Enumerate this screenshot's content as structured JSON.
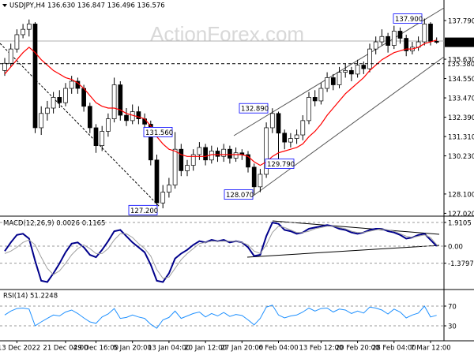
{
  "chart_data": [
    {
      "type": "candlestick",
      "title": "USDJPY,H4 136.630 136.847 136.496 136.576",
      "watermark": "ActionForex.com",
      "ylim": [
        126.95,
        138.85
      ],
      "yticks": [
        {
          "value": 137.79,
          "label": "137.790"
        },
        {
          "value": 135.63,
          "label": "135.630"
        },
        {
          "value": 134.55,
          "label": "134.550"
        },
        {
          "value": 133.47,
          "label": "133.470"
        },
        {
          "value": 132.39,
          "label": "132.390"
        },
        {
          "value": 131.31,
          "label": "131.310"
        },
        {
          "value": 130.23,
          "label": "130.230"
        },
        {
          "value": 128.1,
          "label": "128.100"
        },
        {
          "value": 127.02,
          "label": "127.020"
        }
      ],
      "up_color": "#ffffff",
      "down_color": "#000000",
      "candles": [
        [
          135.0,
          135.7,
          134.7,
          135.4
        ],
        [
          135.4,
          136.5,
          135.2,
          136.2
        ],
        [
          136.2,
          137.3,
          136.0,
          137.0
        ],
        [
          137.0,
          137.6,
          136.8,
          137.3
        ],
        [
          137.3,
          137.85,
          136.9,
          137.6
        ],
        [
          137.6,
          137.7,
          131.5,
          131.8
        ],
        [
          131.8,
          133.0,
          131.4,
          132.6
        ],
        [
          132.6,
          133.3,
          132.2,
          132.9
        ],
        [
          132.9,
          133.8,
          132.6,
          133.5
        ],
        [
          133.5,
          133.9,
          132.9,
          133.2
        ],
        [
          133.2,
          134.3,
          133.0,
          134.0
        ],
        [
          134.0,
          134.7,
          133.7,
          134.4
        ],
        [
          134.4,
          134.6,
          133.7,
          134.0
        ],
        [
          134.0,
          134.2,
          132.7,
          133.0
        ],
        [
          133.0,
          133.2,
          131.5,
          131.8
        ],
        [
          131.8,
          132.0,
          130.4,
          130.8
        ],
        [
          130.8,
          131.9,
          130.5,
          131.6
        ],
        [
          131.6,
          132.6,
          131.3,
          132.3
        ],
        [
          132.3,
          134.6,
          132.1,
          134.2
        ],
        [
          134.2,
          134.4,
          132.2,
          132.5
        ],
        [
          132.5,
          132.9,
          131.9,
          132.2
        ],
        [
          132.2,
          133.1,
          132.0,
          132.7
        ],
        [
          132.7,
          133.0,
          132.0,
          132.3
        ],
        [
          132.3,
          132.6,
          131.7,
          132.0
        ],
        [
          132.0,
          132.2,
          129.7,
          130.0
        ],
        [
          130.0,
          130.3,
          127.2,
          127.6
        ],
        [
          127.6,
          128.6,
          127.3,
          128.2
        ],
        [
          128.2,
          129.0,
          127.9,
          128.6
        ],
        [
          128.6,
          131.56,
          128.4,
          130.6
        ],
        [
          130.6,
          130.9,
          129.1,
          129.4
        ],
        [
          129.4,
          130.0,
          129.1,
          129.7
        ],
        [
          129.7,
          130.6,
          129.4,
          130.3
        ],
        [
          130.3,
          131.0,
          130.0,
          130.7
        ],
        [
          130.7,
          130.9,
          129.7,
          130.0
        ],
        [
          130.0,
          130.8,
          129.8,
          130.5
        ],
        [
          130.5,
          130.7,
          129.9,
          130.2
        ],
        [
          130.2,
          130.9,
          129.9,
          130.6
        ],
        [
          130.6,
          130.8,
          129.8,
          130.1
        ],
        [
          130.1,
          130.7,
          129.9,
          130.4
        ],
        [
          130.4,
          130.6,
          130.0,
          130.3
        ],
        [
          130.3,
          130.5,
          129.3,
          129.6
        ],
        [
          129.6,
          129.8,
          128.07,
          128.5
        ],
        [
          128.5,
          129.5,
          128.2,
          129.2
        ],
        [
          129.2,
          132.1,
          129.0,
          131.8
        ],
        [
          131.8,
          132.89,
          131.5,
          132.6
        ],
        [
          132.6,
          132.7,
          129.79,
          131.5
        ],
        [
          131.5,
          131.7,
          130.6,
          131.0
        ],
        [
          131.0,
          131.5,
          130.7,
          131.2
        ],
        [
          131.2,
          131.7,
          130.9,
          131.4
        ],
        [
          131.4,
          132.5,
          131.1,
          132.2
        ],
        [
          132.2,
          133.8,
          132.0,
          133.5
        ],
        [
          133.5,
          133.9,
          133.0,
          133.3
        ],
        [
          133.3,
          134.3,
          133.1,
          134.0
        ],
        [
          134.0,
          134.9,
          133.8,
          134.6
        ],
        [
          134.6,
          134.8,
          133.9,
          134.2
        ],
        [
          134.2,
          135.2,
          134.0,
          134.9
        ],
        [
          134.9,
          135.4,
          134.6,
          135.0
        ],
        [
          135.0,
          135.2,
          134.4,
          134.8
        ],
        [
          134.8,
          135.6,
          134.6,
          135.3
        ],
        [
          135.3,
          135.5,
          134.8,
          135.1
        ],
        [
          135.1,
          136.5,
          134.9,
          136.2
        ],
        [
          136.2,
          136.9,
          135.9,
          136.6
        ],
        [
          136.6,
          137.3,
          136.4,
          136.9
        ],
        [
          136.9,
          137.1,
          136.0,
          136.4
        ],
        [
          136.4,
          137.5,
          136.2,
          137.2
        ],
        [
          137.2,
          137.4,
          136.5,
          136.8
        ],
        [
          136.8,
          137.0,
          135.8,
          136.1
        ],
        [
          136.1,
          136.6,
          135.9,
          136.3
        ],
        [
          136.3,
          136.9,
          136.1,
          136.6
        ],
        [
          136.6,
          137.9,
          136.4,
          137.6
        ],
        [
          137.6,
          137.7,
          136.4,
          136.63
        ],
        [
          136.63,
          136.847,
          136.496,
          136.576
        ]
      ],
      "series": [
        {
          "color": "#ff0000",
          "values": [
            134.8,
            135.2,
            135.6,
            136.0,
            136.3,
            136.0,
            135.6,
            135.3,
            135.0,
            134.8,
            134.6,
            134.5,
            134.3,
            134.0,
            133.6,
            133.2,
            133.0,
            132.9,
            132.9,
            132.8,
            132.6,
            132.5,
            132.4,
            132.3,
            131.9,
            131.3,
            130.9,
            130.6,
            130.5,
            130.3,
            130.2,
            130.2,
            130.2,
            130.2,
            130.3,
            130.3,
            130.3,
            130.3,
            130.3,
            130.3,
            130.2,
            129.9,
            129.7,
            129.9,
            130.2,
            130.4,
            130.5,
            130.6,
            130.7,
            130.9,
            131.3,
            131.6,
            132.0,
            132.5,
            132.9,
            133.3,
            133.7,
            134.0,
            134.3,
            134.6,
            135.0,
            135.3,
            135.6,
            135.8,
            136.0,
            136.1,
            136.2,
            136.2,
            136.3,
            136.5,
            136.6,
            136.7
          ]
        }
      ],
      "hline": {
        "value": 135.38,
        "label": "135.380"
      },
      "annotations": [
        {
          "value": 137.9,
          "label": "137.900"
        },
        {
          "value": 132.89,
          "label": "132.890"
        },
        {
          "value": 131.56,
          "label": "131.560"
        },
        {
          "value": 129.79,
          "label": "129.790"
        },
        {
          "value": 128.07,
          "label": "128.070"
        },
        {
          "value": 127.2,
          "label": "127.200"
        }
      ]
    },
    {
      "type": "line",
      "title": "MACD(12,26,9) 0.0026 0.1165",
      "ylim": [
        -3.44,
        2.29
      ],
      "yticks": [
        1.9105,
        {
          "value": 0,
          "label": "0.00"
        },
        -1.3797
      ],
      "series": [
        {
          "color": "#00008b",
          "width": 2,
          "values": [
            -0.4,
            0.3,
            0.9,
            1.0,
            0.6,
            -1.2,
            -2.8,
            -2.9,
            -2.2,
            -1.4,
            -0.5,
            0.2,
            0.3,
            -0.1,
            -0.7,
            -0.9,
            -0.3,
            0.4,
            1.2,
            1.3,
            0.8,
            0.3,
            -0.1,
            -0.5,
            -1.5,
            -2.8,
            -2.9,
            -2.2,
            -1.0,
            -0.6,
            -0.3,
            0.1,
            0.4,
            0.3,
            0.5,
            0.4,
            0.5,
            0.3,
            0.4,
            0.3,
            -0.1,
            -0.8,
            -0.7,
            0.8,
            1.9,
            1.8,
            1.3,
            1.2,
            1.0,
            1.1,
            1.4,
            1.5,
            1.6,
            1.7,
            1.6,
            1.4,
            1.3,
            1.1,
            1.0,
            1.1,
            1.3,
            1.4,
            1.4,
            1.2,
            1.1,
            0.9,
            0.6,
            0.7,
            0.9,
            1.0,
            0.5,
            0.0026
          ]
        },
        {
          "color": "#a0a0a0",
          "width": 1,
          "values": [
            -0.6,
            -0.4,
            -0.1,
            0.3,
            0.5,
            0.1,
            -0.9,
            -1.8,
            -2.3,
            -2.0,
            -1.4,
            -0.7,
            -0.2,
            0.1,
            -0.2,
            -0.6,
            -0.6,
            -0.2,
            0.5,
            1.0,
            1.0,
            0.7,
            0.2,
            -0.2,
            -0.8,
            -1.9,
            -2.6,
            -2.5,
            -1.8,
            -1.1,
            -0.6,
            -0.2,
            0.2,
            0.3,
            0.4,
            0.4,
            0.4,
            0.4,
            0.4,
            0.3,
            0.1,
            -0.4,
            -0.6,
            0.1,
            1.1,
            1.6,
            1.5,
            1.3,
            1.1,
            1.1,
            1.2,
            1.4,
            1.5,
            1.6,
            1.6,
            1.5,
            1.4,
            1.2,
            1.1,
            1.1,
            1.2,
            1.3,
            1.4,
            1.3,
            1.2,
            1.0,
            0.8,
            0.7,
            0.8,
            0.9,
            0.7,
            0.1165
          ]
        }
      ]
    },
    {
      "type": "line",
      "title": "RSI(14) 51.2248",
      "ylim": [
        1.2,
        100.4
      ],
      "yticks": [
        70,
        30
      ],
      "series": [
        {
          "color": "#1e90ff",
          "width": 1,
          "values": [
            52,
            60,
            65,
            66,
            64,
            30,
            38,
            45,
            52,
            50,
            58,
            62,
            55,
            46,
            38,
            35,
            48,
            54,
            65,
            45,
            47,
            52,
            48,
            45,
            33,
            25,
            42,
            47,
            60,
            45,
            50,
            55,
            58,
            48,
            55,
            50,
            57,
            49,
            53,
            51,
            42,
            32,
            45,
            68,
            72,
            52,
            46,
            50,
            52,
            58,
            66,
            60,
            65,
            66,
            58,
            64,
            62,
            55,
            60,
            56,
            68,
            66,
            62,
            54,
            64,
            58,
            46,
            52,
            56,
            70,
            48,
            51.2248
          ]
        }
      ],
      "xticks": [
        {
          "value": 2,
          "label": "13 Dec 2022"
        },
        {
          "value": 10,
          "label": "21 Dec 04:00"
        },
        {
          "value": 15,
          "label": "29 Dec 16:00"
        },
        {
          "value": 21,
          "label": "5 Jan 20:00"
        },
        {
          "value": 27,
          "label": "13 Jan 04:00"
        },
        {
          "value": 33,
          "label": "20 Jan 12:00"
        },
        {
          "value": 39,
          "label": "27 Jan 20:00"
        },
        {
          "value": 45,
          "label": "6 Feb 04:00"
        },
        {
          "value": 52,
          "label": "13 Feb 12:00"
        },
        {
          "value": 58,
          "label": "20 Feb 20:00"
        },
        {
          "value": 64,
          "label": "28 Feb 04:00"
        },
        {
          "value": 70,
          "label": "7 Mar 12:00"
        }
      ]
    }
  ]
}
